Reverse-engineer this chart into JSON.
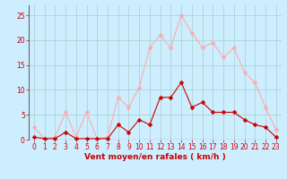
{
  "x": [
    0,
    1,
    2,
    3,
    4,
    5,
    6,
    7,
    8,
    9,
    10,
    11,
    12,
    13,
    14,
    15,
    16,
    17,
    18,
    19,
    20,
    21,
    22,
    23
  ],
  "y_rafales": [
    2.5,
    0.2,
    0.5,
    5.5,
    0.5,
    5.5,
    0.2,
    0.5,
    8.5,
    6.5,
    10.5,
    18.5,
    21,
    18.5,
    25,
    21.5,
    18.5,
    19.5,
    16.5,
    18.5,
    13.5,
    11.5,
    6.5,
    2
  ],
  "y_moyen": [
    0.5,
    0.2,
    0.2,
    1.5,
    0.2,
    0.2,
    0.2,
    0.2,
    3.0,
    1.5,
    4.0,
    3.0,
    8.5,
    8.5,
    11.5,
    6.5,
    7.5,
    5.5,
    5.5,
    5.5,
    4.0,
    3.0,
    2.5,
    0.5
  ],
  "color_rafales": "#ffaaaa",
  "color_moyen": "#cc0000",
  "bg_color": "#cceeff",
  "grid_color": "#aacccc",
  "xlabel": "Vent moyen/en rafales ( km/h )",
  "xlabel_color": "#cc0000",
  "tick_color": "#cc0000",
  "spine_color": "#666666",
  "axhline_color": "#cc0000",
  "ylim": [
    0,
    27
  ],
  "xlim": [
    -0.5,
    23.5
  ],
  "yticks": [
    0,
    5,
    10,
    15,
    20,
    25
  ],
  "xticks": [
    0,
    1,
    2,
    3,
    4,
    5,
    6,
    7,
    8,
    9,
    10,
    11,
    12,
    13,
    14,
    15,
    16,
    17,
    18,
    19,
    20,
    21,
    22,
    23
  ],
  "tick_fontsize": 5.5,
  "xlabel_fontsize": 6.5,
  "marker_size": 2.5,
  "line_width": 0.8
}
